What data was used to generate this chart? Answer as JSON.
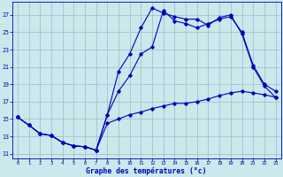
{
  "xlabel": "Graphe des températures (°c)",
  "background_color": "#cce8ec",
  "grid_color": "#99bbcc",
  "line_color": "#0000bb",
  "ylim": [
    10.5,
    28.5
  ],
  "xlim": [
    -0.5,
    23.5
  ],
  "yticks": [
    11,
    13,
    15,
    17,
    19,
    21,
    23,
    25,
    27
  ],
  "xticks": [
    0,
    1,
    2,
    3,
    4,
    5,
    6,
    7,
    8,
    9,
    10,
    11,
    12,
    13,
    14,
    15,
    16,
    17,
    18,
    19,
    20,
    21,
    22,
    23
  ],
  "line1_x": [
    0,
    1,
    2,
    3,
    4,
    5,
    6,
    7,
    8,
    9,
    10,
    11,
    12,
    13,
    14,
    15,
    16,
    17,
    18,
    19,
    20,
    21,
    22,
    23
  ],
  "line1_y": [
    15.2,
    14.3,
    13.3,
    13.1,
    12.3,
    11.9,
    11.8,
    11.4,
    15.5,
    20.5,
    22.5,
    25.5,
    27.8,
    27.2,
    26.8,
    26.5,
    26.5,
    25.8,
    26.7,
    27.0,
    24.8,
    21.0,
    18.8,
    17.5
  ],
  "line2_x": [
    0,
    1,
    2,
    3,
    4,
    5,
    6,
    7,
    8,
    9,
    10,
    11,
    12,
    13,
    14,
    15,
    16,
    17,
    18,
    19,
    20,
    21,
    22,
    23
  ],
  "line2_y": [
    15.2,
    14.3,
    13.3,
    13.1,
    12.3,
    11.9,
    11.8,
    11.4,
    15.5,
    18.2,
    20.0,
    22.5,
    23.3,
    27.5,
    26.3,
    26.0,
    25.5,
    26.0,
    26.5,
    26.8,
    25.0,
    21.2,
    19.0,
    18.2
  ],
  "line3_x": [
    0,
    1,
    2,
    3,
    4,
    5,
    6,
    7,
    8,
    9,
    10,
    11,
    12,
    13,
    14,
    15,
    16,
    17,
    18,
    19,
    20,
    21,
    22,
    23
  ],
  "line3_y": [
    15.2,
    14.3,
    13.3,
    13.1,
    12.3,
    11.9,
    11.8,
    11.4,
    14.5,
    15.0,
    15.5,
    15.8,
    16.2,
    16.5,
    16.8,
    16.8,
    17.0,
    17.3,
    17.7,
    18.0,
    18.2,
    18.0,
    17.8,
    17.5
  ]
}
